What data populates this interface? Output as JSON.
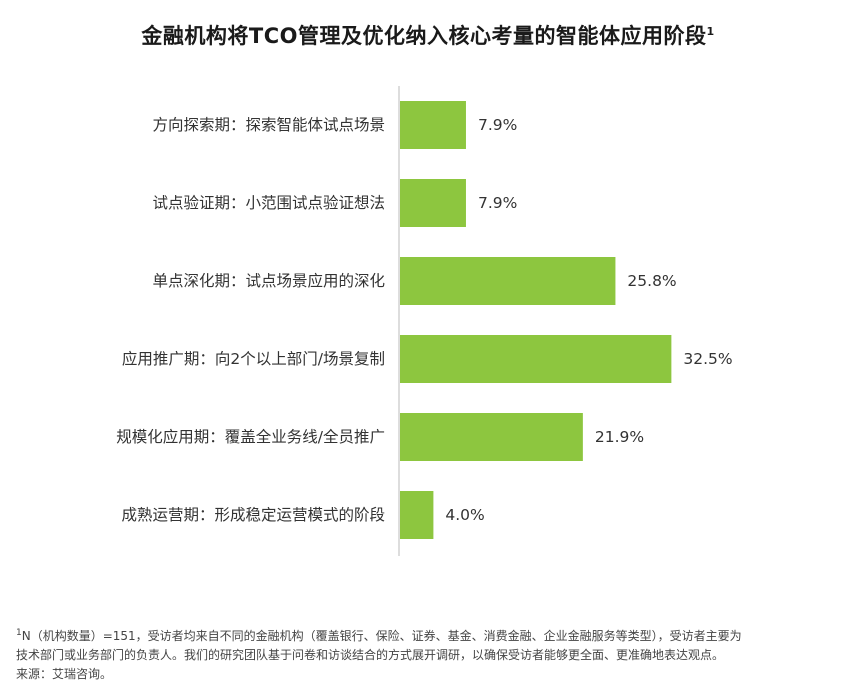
{
  "title": "金融机构将TCO管理及优化纳入核心考量的智能体应用阶段",
  "title_note_mark": "1",
  "chart_data": {
    "type": "bar",
    "orientation": "horizontal",
    "categories": [
      "方向探索期：探索智能体试点场景",
      "试点验证期：小范围试点验证想法",
      "单点深化期：试点场景应用的深化",
      "应用推广期：向2个以上部门/场景复制",
      "规模化应用期：覆盖全业务线/全员推广",
      "成熟运营期：形成稳定运营模式的阶段"
    ],
    "values": [
      7.9,
      7.9,
      25.8,
      32.5,
      21.9,
      4.0
    ],
    "value_labels": [
      "7.9%",
      "7.9%",
      "25.8%",
      "32.5%",
      "21.9%",
      "4.0%"
    ],
    "unit": "%",
    "bar_color": "#8dc63f",
    "axis_color": "#bbbbbb",
    "grid": false,
    "legend": "none"
  },
  "footnote": {
    "mark": "1",
    "line1": "N（机构数量）=151，受访者均来自不同的金融机构（覆盖银行、保险、证券、基金、消费金融、企业金融服务等类型），受访者主要为",
    "line2": "技术部门或业务部门的负责人。我们的研究团队基于问卷和访谈结合的方式展开调研，以确保受访者能够更全面、更准确地表达观点。",
    "source": "来源：艾瑞咨询。"
  }
}
